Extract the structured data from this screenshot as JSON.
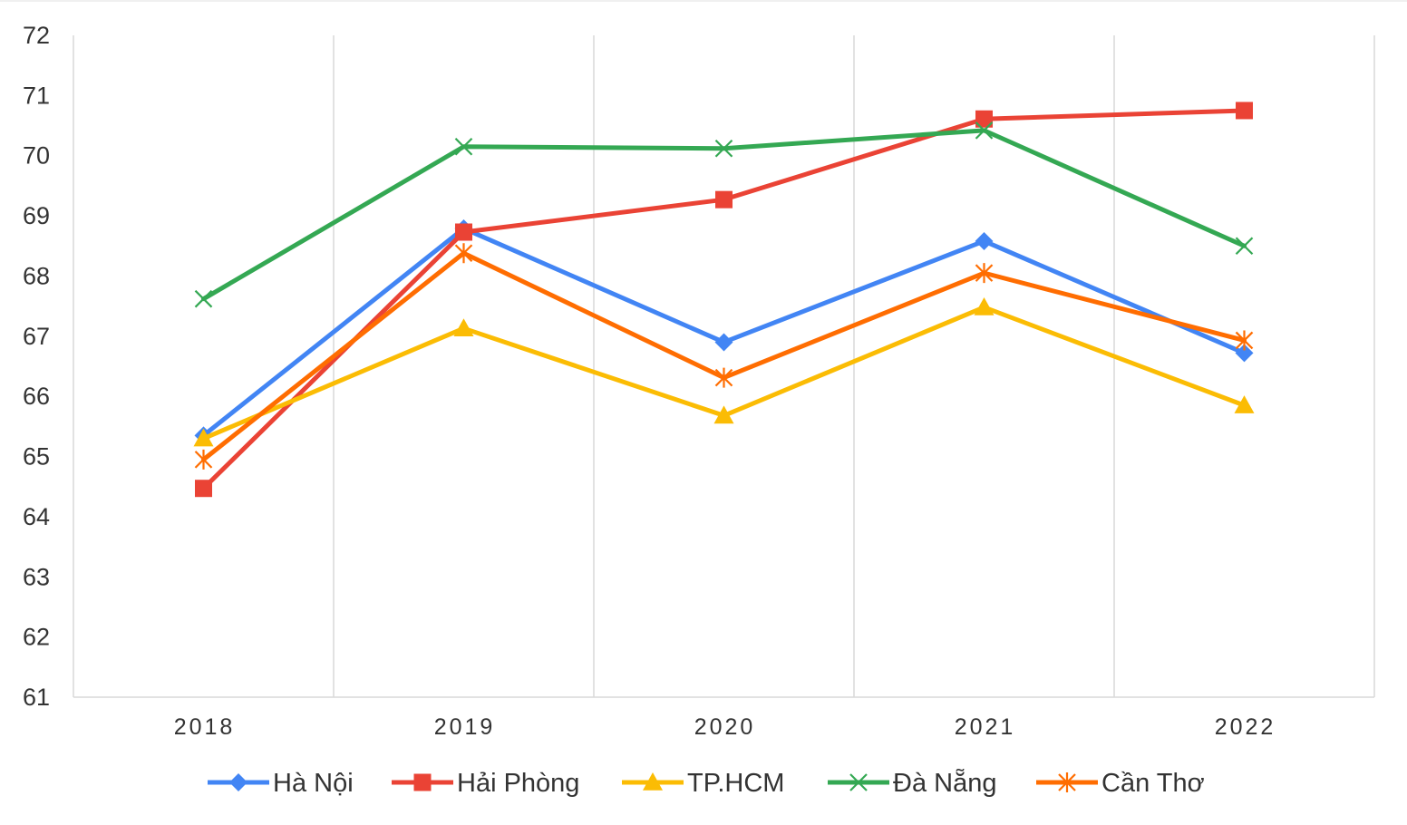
{
  "chart_data": {
    "type": "line",
    "categories": [
      "2018",
      "2019",
      "2020",
      "2021",
      "2022"
    ],
    "ylim": [
      61,
      72
    ],
    "yticks": [
      "61",
      "62",
      "63",
      "64",
      "65",
      "66",
      "67",
      "68",
      "69",
      "70",
      "71",
      "72"
    ],
    "grid": "vertical",
    "legend_position": "bottom",
    "series": [
      {
        "name": "Hà Nội",
        "color": "#4285F4",
        "marker": "diamond",
        "values": [
          65.35,
          68.79,
          66.9,
          68.58,
          66.72
        ]
      },
      {
        "name": "Hải Phòng",
        "color": "#EA4335",
        "marker": "square",
        "values": [
          64.47,
          68.73,
          69.27,
          70.61,
          70.75
        ]
      },
      {
        "name": "TP.HCM",
        "color": "#FBBC04",
        "marker": "triangle",
        "values": [
          65.3,
          67.13,
          65.68,
          67.48,
          65.85
        ]
      },
      {
        "name": "Đà Nẵng",
        "color": "#34A853",
        "marker": "x",
        "values": [
          67.62,
          70.15,
          70.12,
          70.42,
          68.5
        ]
      },
      {
        "name": "Cần Thơ",
        "color": "#FF6D01",
        "marker": "star",
        "values": [
          64.95,
          68.38,
          66.31,
          68.05,
          66.93
        ]
      }
    ]
  }
}
